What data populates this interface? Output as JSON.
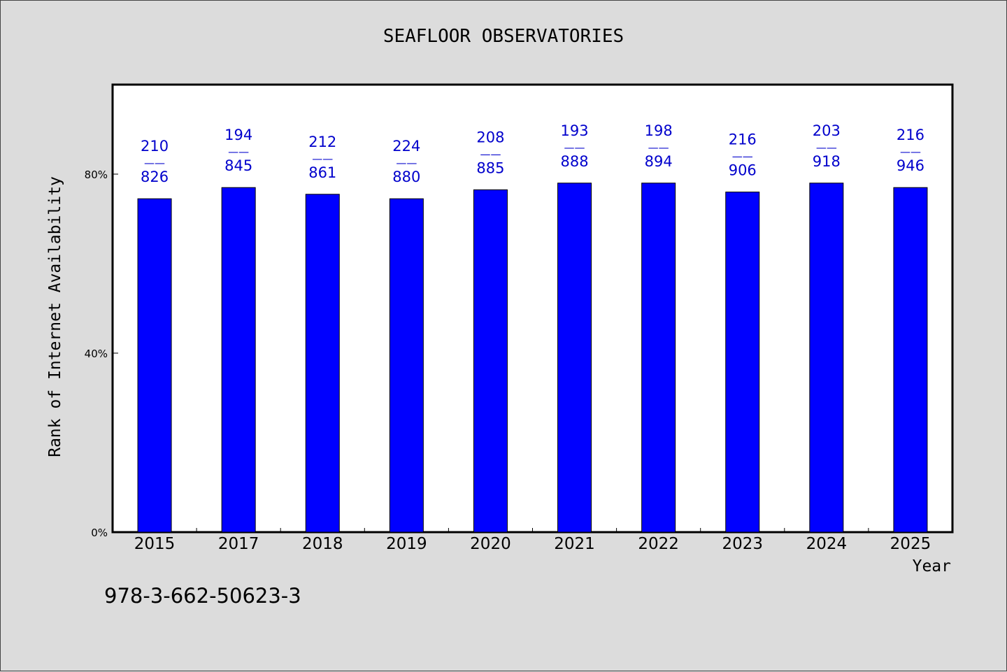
{
  "chart_data": {
    "type": "bar",
    "title": "SEAFLOOR OBSERVATORIES",
    "xlabel": "Year",
    "ylabel": "Rank of Internet Availability",
    "categories": [
      "2015",
      "2017",
      "2018",
      "2019",
      "2020",
      "2021",
      "2022",
      "2023",
      "2024",
      "2025"
    ],
    "values": [
      74.5,
      77,
      75.5,
      74.5,
      76.5,
      78,
      78,
      76,
      78,
      77
    ],
    "bar_labels": [
      {
        "top": "210",
        "sep": "——",
        "bottom": "826"
      },
      {
        "top": "194",
        "sep": "——",
        "bottom": "845"
      },
      {
        "top": "212",
        "sep": "——",
        "bottom": "861"
      },
      {
        "top": "224",
        "sep": "——",
        "bottom": "880"
      },
      {
        "top": "208",
        "sep": "——",
        "bottom": "885"
      },
      {
        "top": "193",
        "sep": "——",
        "bottom": "888"
      },
      {
        "top": "198",
        "sep": "——",
        "bottom": "894"
      },
      {
        "top": "216",
        "sep": "——",
        "bottom": "906"
      },
      {
        "top": "203",
        "sep": "——",
        "bottom": "918"
      },
      {
        "top": "216",
        "sep": "——",
        "bottom": "946"
      }
    ],
    "yticks": [
      0,
      40,
      80
    ],
    "ytick_labels": [
      "0%",
      "40%",
      "80%"
    ],
    "ylim": [
      0,
      100
    ],
    "grid": false,
    "legend": "none",
    "colors": {
      "bar": "#0000ff",
      "bar_label": "#0000cc",
      "page_background": "#dcdcdc",
      "plot_background": "#ffffff"
    }
  },
  "footer": {
    "isbn": "978-3-662-50623-3"
  }
}
